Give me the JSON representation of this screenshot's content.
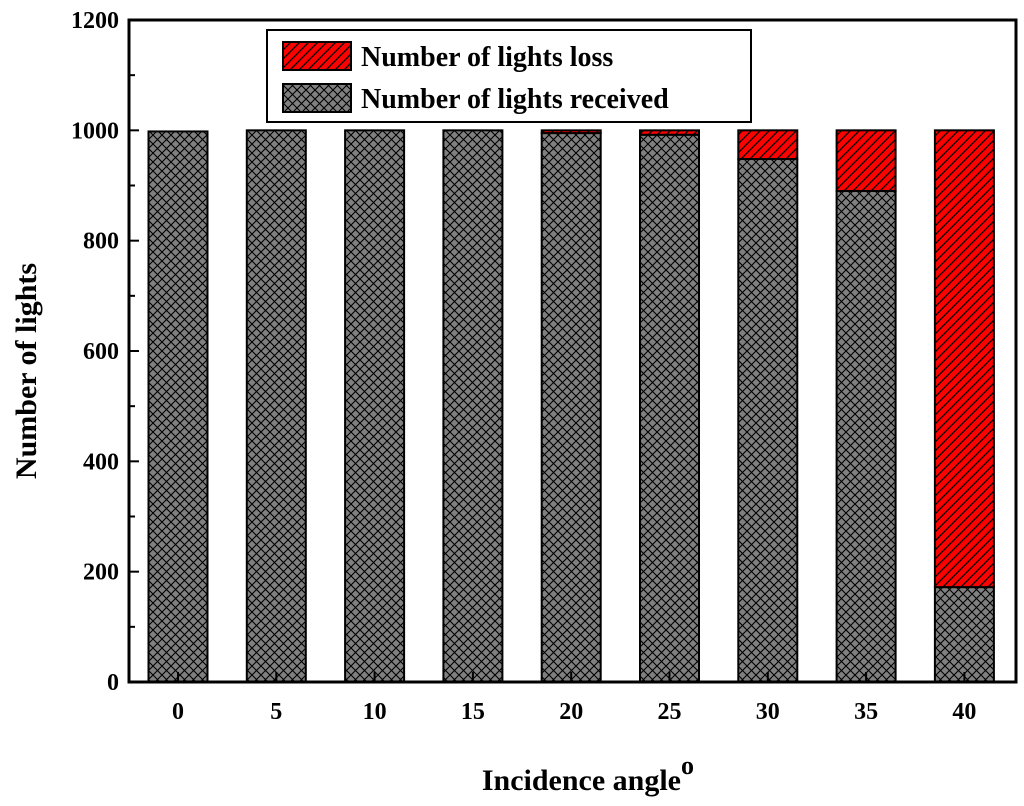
{
  "chart_data": {
    "type": "bar",
    "stacked": true,
    "title": "",
    "xlabel": "Incidence angle",
    "xlabel_superscript": "o",
    "ylabel": "Number of lights",
    "categories": [
      "0",
      "5",
      "10",
      "15",
      "20",
      "25",
      "30",
      "35",
      "40"
    ],
    "ylim": [
      0,
      1200
    ],
    "yticks": [
      0,
      200,
      400,
      600,
      800,
      1000,
      1200
    ],
    "legend_position": "top-center",
    "series": [
      {
        "name": "Number of lights received",
        "color": "#808080",
        "pattern": "crosshatch",
        "values": [
          998,
          1000,
          1000,
          1000,
          995,
          992,
          948,
          890,
          172
        ]
      },
      {
        "name": "Number of lights loss",
        "color": "#ff0000",
        "pattern": "diagonal",
        "values": [
          0,
          0,
          0,
          0,
          5,
          8,
          52,
          110,
          828
        ]
      }
    ],
    "legend_order": [
      1,
      0
    ]
  }
}
